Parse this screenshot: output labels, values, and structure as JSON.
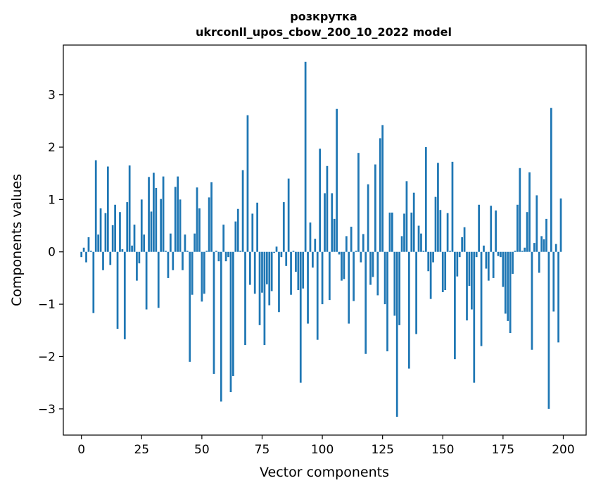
{
  "chart_data": {
    "type": "bar",
    "title": "розкрутка",
    "subtitle": "ukrconll_upos_cbow_200_10_2022 model",
    "xlabel": "Vector components",
    "ylabel": "Components values",
    "xlim": [
      -7.5,
      209.5
    ],
    "ylim": [
      -3.5,
      3.95
    ],
    "xticks": [
      0,
      25,
      50,
      75,
      100,
      125,
      150,
      175,
      200
    ],
    "yticks": [
      -3,
      -2,
      -1,
      0,
      1,
      2,
      3
    ],
    "grid": false,
    "bar_color": "#1f77b4",
    "x": [
      0,
      1,
      2,
      3,
      4,
      5,
      6,
      7,
      8,
      9,
      10,
      11,
      12,
      13,
      14,
      15,
      16,
      17,
      18,
      19,
      20,
      21,
      22,
      23,
      24,
      25,
      26,
      27,
      28,
      29,
      30,
      31,
      32,
      33,
      34,
      35,
      36,
      37,
      38,
      39,
      40,
      41,
      42,
      43,
      44,
      45,
      46,
      47,
      48,
      49,
      50,
      51,
      52,
      53,
      54,
      55,
      56,
      57,
      58,
      59,
      60,
      61,
      62,
      63,
      64,
      65,
      66,
      67,
      68,
      69,
      70,
      71,
      72,
      73,
      74,
      75,
      76,
      77,
      78,
      79,
      80,
      81,
      82,
      83,
      84,
      85,
      86,
      87,
      88,
      89,
      90,
      91,
      92,
      93,
      94,
      95,
      96,
      97,
      98,
      99,
      100,
      101,
      102,
      103,
      104,
      105,
      106,
      107,
      108,
      109,
      110,
      111,
      112,
      113,
      114,
      115,
      116,
      117,
      118,
      119,
      120,
      121,
      122,
      123,
      124,
      125,
      126,
      127,
      128,
      129,
      130,
      131,
      132,
      133,
      134,
      135,
      136,
      137,
      138,
      139,
      140,
      141,
      142,
      143,
      144,
      145,
      146,
      147,
      148,
      149,
      150,
      151,
      152,
      153,
      154,
      155,
      156,
      157,
      158,
      159,
      160,
      161,
      162,
      163,
      164,
      165,
      166,
      167,
      168,
      169,
      170,
      171,
      172,
      173,
      174,
      175,
      176,
      177,
      178,
      179,
      180,
      181,
      182,
      183,
      184,
      185,
      186,
      187,
      188,
      189,
      190,
      191,
      192,
      193,
      194,
      195,
      196,
      197,
      198,
      199
    ],
    "values": [
      -0.1,
      0.08,
      -0.2,
      0.28,
      0.02,
      -1.17,
      1.75,
      0.33,
      0.83,
      -0.35,
      0.74,
      1.63,
      -0.25,
      0.51,
      0.9,
      -1.47,
      0.76,
      0.05,
      -1.67,
      0.95,
      1.65,
      0.12,
      0.52,
      -0.55,
      -0.22,
      1.0,
      0.33,
      -1.1,
      1.43,
      0.77,
      1.51,
      1.22,
      -1.07,
      1.01,
      1.44,
      0.02,
      -0.5,
      0.35,
      -0.35,
      1.24,
      1.44,
      1.0,
      -0.35,
      0.33,
      0.02,
      -2.1,
      -0.82,
      0.35,
      1.23,
      0.83,
      -0.95,
      -0.8,
      0.02,
      1.04,
      1.33,
      -2.33,
      0.02,
      -0.18,
      -2.86,
      0.52,
      -0.18,
      -0.1,
      -2.68,
      -2.37,
      0.58,
      0.82,
      0.02,
      1.56,
      -1.78,
      2.61,
      -0.63,
      0.73,
      -0.8,
      0.94,
      -1.4,
      -0.78,
      -1.78,
      -0.62,
      -1.02,
      -0.75,
      -0.02,
      0.1,
      -1.15,
      -0.1,
      0.95,
      -0.27,
      1.4,
      -0.82,
      0.02,
      -0.38,
      -0.73,
      -2.5,
      -0.7,
      3.63,
      -1.37,
      0.56,
      -0.3,
      0.25,
      -1.68,
      1.97,
      -1.0,
      1.12,
      1.64,
      -0.92,
      1.12,
      0.63,
      2.73,
      -0.05,
      -0.55,
      -0.52,
      0.3,
      -1.37,
      0.48,
      -0.94,
      0.02,
      1.89,
      -0.2,
      0.34,
      -1.95,
      1.29,
      -0.63,
      -0.48,
      1.67,
      -0.83,
      2.17,
      2.42,
      -1.0,
      -1.9,
      0.75,
      0.75,
      -1.22,
      -3.15,
      -1.4,
      0.3,
      0.73,
      1.35,
      -2.23,
      0.75,
      1.13,
      -1.57,
      0.5,
      0.35,
      0.02,
      2.0,
      -0.37,
      -0.9,
      -0.2,
      1.05,
      1.7,
      0.8,
      -0.77,
      -0.73,
      0.74,
      0.02,
      1.72,
      -2.05,
      -0.47,
      -0.1,
      0.28,
      0.47,
      -1.31,
      -0.65,
      -1.1,
      -2.5,
      -0.1,
      0.9,
      -1.8,
      0.12,
      -0.32,
      -0.55,
      0.88,
      -0.5,
      0.79,
      -0.08,
      -0.1,
      -0.67,
      -1.18,
      -1.32,
      -1.55,
      -0.42,
      0.02,
      0.9,
      1.6,
      0.02,
      0.08,
      0.76,
      1.52,
      -1.87,
      0.17,
      1.08,
      -0.4,
      0.3,
      0.24,
      0.63,
      -3.0,
      2.75,
      -1.14,
      0.15,
      -1.73,
      1.02
    ]
  }
}
